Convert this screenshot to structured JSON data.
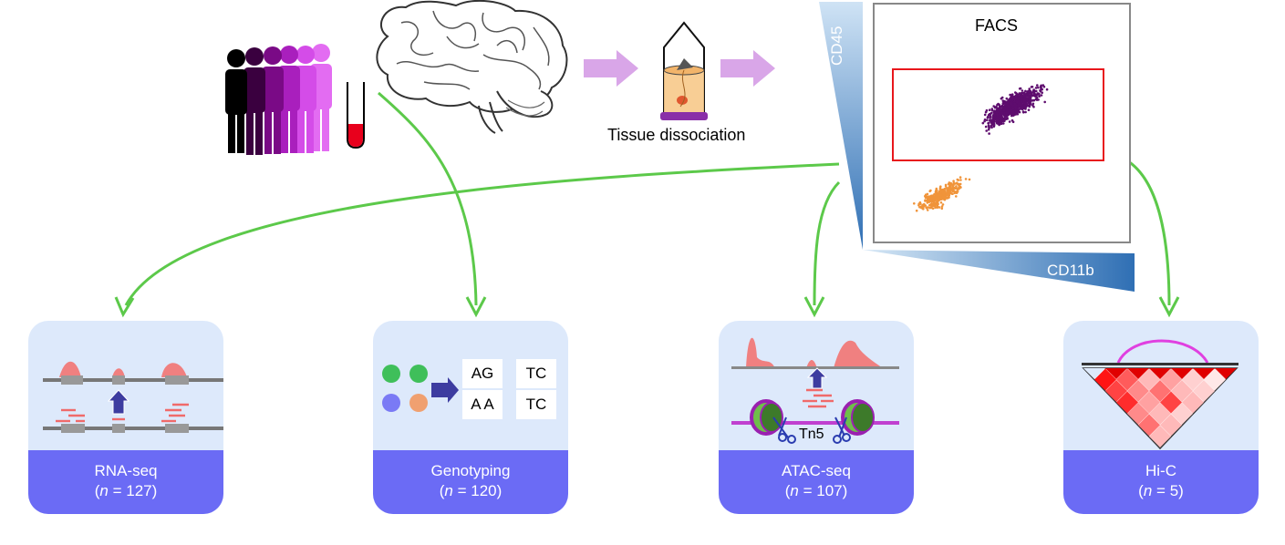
{
  "steps": {
    "tissue_dissociation": "Tissue dissociation"
  },
  "facs": {
    "title": "FACS",
    "y_axis": "CD45",
    "x_axis": "CD11b",
    "colors": {
      "gate": "#e8171c",
      "purple_population": "#5e0d6e",
      "orange_population": "#f0943a",
      "axis_gradient": "#3a7dc0"
    }
  },
  "assays": [
    {
      "name": "RNA-seq",
      "n_label": "n",
      "n_value": "= 127)"
    },
    {
      "name": "Genotyping",
      "n_label": "n",
      "n_value": "= 120)"
    },
    {
      "name": "ATAC-seq",
      "n_label": "n",
      "n_value": "= 107)"
    },
    {
      "name": "Hi-C",
      "n_label": "n",
      "n_value": "= 5)"
    }
  ],
  "genotyping": {
    "cells": [
      "AG",
      "TC",
      "A A",
      "TC"
    ]
  },
  "atac": {
    "enzyme": "Tn5"
  },
  "colors": {
    "arrow_green": "#5cc94a",
    "flow_arrow": "#d9a6e8",
    "card_bg": "#dde9fb",
    "card_footer": "#6b6bf5",
    "people": [
      "#000000",
      "#3a003f",
      "#7a0a86",
      "#a91fbd",
      "#d44ce8",
      "#e36cf2"
    ],
    "blood_tube": "#e8001c"
  },
  "icons": [
    "people-icon",
    "blood-tube-icon",
    "brain-icon",
    "dissociation-vial-icon",
    "scissors-icon",
    "nucleosome-icon"
  ]
}
